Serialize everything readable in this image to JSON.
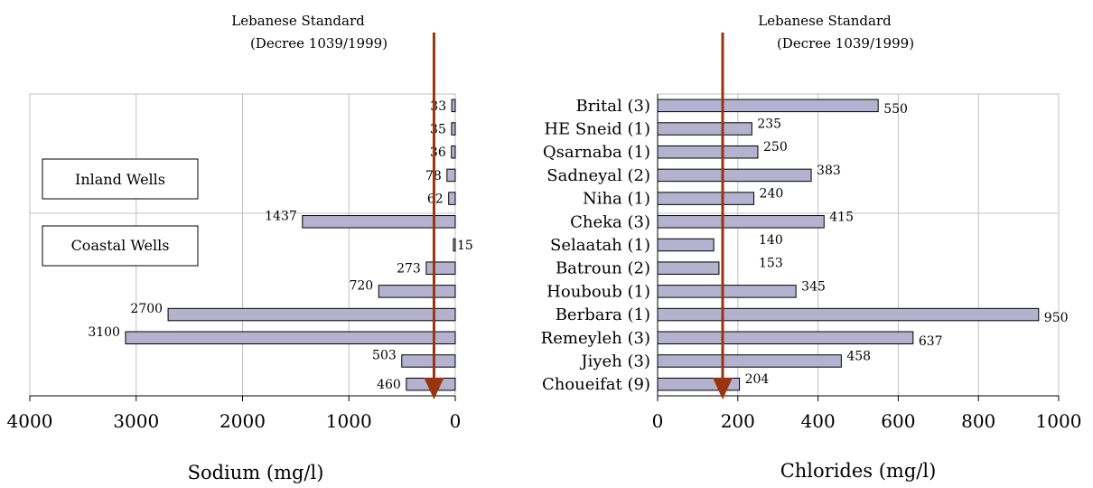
{
  "chart_data": [
    {
      "type": "bar",
      "orientation": "horizontal",
      "xlabel": "Sodium (mg/l)",
      "xlim": [
        0,
        4000
      ],
      "x_reversed": true,
      "xticks": [
        "4000",
        "3000",
        "2000",
        "1000",
        "0"
      ],
      "grid": true,
      "standard_line": {
        "label_line1": "Lebanese Standard",
        "label_line2": "(Decree 1039/1999)",
        "value": 200
      },
      "group_boxes": [
        {
          "label": "Inland Wells"
        },
        {
          "label": "Coastal Wells"
        }
      ],
      "values": [
        33,
        35,
        36,
        78,
        62,
        1437,
        15,
        273,
        720,
        2700,
        3100,
        503,
        460
      ]
    },
    {
      "type": "bar",
      "orientation": "horizontal",
      "xlabel": "Chlorides (mg/l)",
      "xlim": [
        0,
        1000
      ],
      "xticks": [
        "0",
        "200",
        "400",
        "600",
        "800",
        "1000"
      ],
      "grid": true,
      "standard_line": {
        "label_line1": "Lebanese Standard",
        "label_line2": "(Decree 1039/1999)",
        "value": 250
      },
      "categories": [
        "Brital (3)",
        "HE Sneid (1)",
        "Qsarnaba (1)",
        "Sadneyal (2)",
        "Niha (1)",
        "Cheka (3)",
        "Selaatah (1)",
        "Batroun (2)",
        "Houboub (1)",
        "Berbara (1)",
        "Remeyleh (3)",
        "Jiyeh (3)",
        "Choueifat (9)"
      ],
      "values": [
        550,
        235,
        250,
        383,
        240,
        415,
        140,
        153,
        345,
        950,
        637,
        458,
        204
      ]
    }
  ],
  "colors": {
    "bar_fill": "#b4b2ce",
    "bar_stroke": "#000000",
    "grid": "#c0c0c0",
    "standard_arrow": "#983510"
  }
}
